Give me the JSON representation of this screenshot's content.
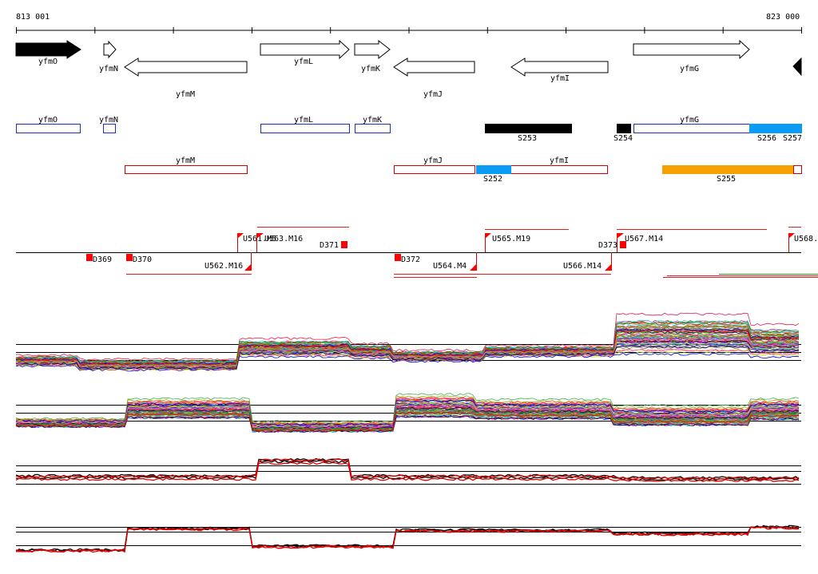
{
  "coordinates": {
    "start": "813 001",
    "end": "823 000"
  },
  "colors": {
    "sense_box": "#1c2fc0",
    "antisense_box": "#d40000",
    "blue_fill": "#0a9cf5",
    "orange_fill": "#f7a100",
    "black_fill": "#000000",
    "marker_red": "#ff0000"
  },
  "genes": [
    {
      "label": "yfmO",
      "strand": "+",
      "style": "solid"
    },
    {
      "label": "yfmN",
      "strand": "+",
      "style": "open"
    },
    {
      "label": "yfmM",
      "strand": "-",
      "style": "open"
    },
    {
      "label": "yfmL",
      "strand": "+",
      "style": "open"
    },
    {
      "label": "yfmK",
      "strand": "+",
      "style": "open"
    },
    {
      "label": "yfmJ",
      "strand": "-",
      "style": "open"
    },
    {
      "label": "yfmI",
      "strand": "-",
      "style": "open"
    },
    {
      "label": "yfmG",
      "strand": "+",
      "style": "open"
    },
    {
      "label": "",
      "strand": "-",
      "style": "solid"
    }
  ],
  "sense_features": [
    {
      "label": "yfmO"
    },
    {
      "label": "yfmN"
    },
    {
      "label": "yfmL"
    },
    {
      "label": "yfmK"
    },
    {
      "label": "yfmG"
    }
  ],
  "sense_segments": [
    {
      "label": "S253",
      "color": "black"
    },
    {
      "label": "S254",
      "color": "black"
    },
    {
      "label": "S256",
      "color": "blue"
    },
    {
      "label": "S257",
      "color": "blue"
    }
  ],
  "antisense_features": [
    {
      "label": "yfmM"
    },
    {
      "label": "yfmJ"
    },
    {
      "label": "yfmI"
    }
  ],
  "antisense_segments": [
    {
      "label": "S252",
      "color": "blue"
    },
    {
      "label": "S255",
      "color": "orange"
    }
  ],
  "upshifts": [
    {
      "label": "U561.M5"
    },
    {
      "label": "U563.M16"
    },
    {
      "label": "U565.M19"
    },
    {
      "label": "U567.M14"
    },
    {
      "label": "U568."
    }
  ],
  "downshifts_labels": [
    {
      "label": "U562.M16"
    },
    {
      "label": "U564.M4"
    },
    {
      "label": "U566.M14"
    }
  ],
  "breakpoints": [
    {
      "label": "D369"
    },
    {
      "label": "D370"
    },
    {
      "label": "D371"
    },
    {
      "label": "D372"
    },
    {
      "label": "D373"
    }
  ]
}
